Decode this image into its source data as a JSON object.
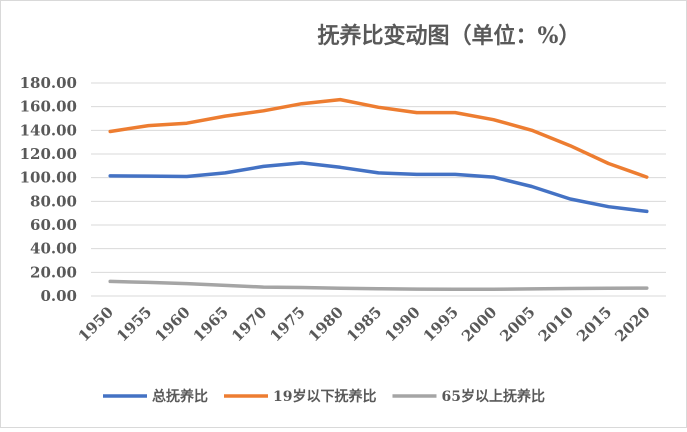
{
  "chart_data": {
    "type": "line",
    "title": "抚养比变动图（单位：%）",
    "xlabel": "",
    "ylabel": "",
    "x": [
      "1950",
      "1955",
      "1960",
      "1965",
      "1970",
      "1975",
      "1980",
      "1985",
      "1990",
      "1995",
      "2000",
      "2005",
      "2010",
      "2015",
      "2020"
    ],
    "y_ticks": [
      "0.00",
      "20.00",
      "40.00",
      "60.00",
      "80.00",
      "100.00",
      "120.00",
      "140.00",
      "160.00",
      "180.00"
    ],
    "ylim": [
      0,
      180
    ],
    "grid": "horizontal",
    "legend_position": "bottom",
    "series": [
      {
        "name": "总抚养比",
        "color": "#4472c4",
        "values": [
          101.5,
          101.3,
          101.0,
          104.0,
          109.5,
          112.5,
          108.8,
          104.0,
          102.8,
          102.8,
          100.5,
          92.5,
          82.0,
          75.5,
          71.5
        ]
      },
      {
        "name": "19岁以下抚养比",
        "color": "#ed7d31",
        "values": [
          139.0,
          144.0,
          146.0,
          152.0,
          156.5,
          162.5,
          166.0,
          159.5,
          155.0,
          155.0,
          149.0,
          140.0,
          127.0,
          112.0,
          100.5
        ]
      },
      {
        "name": "65岁以上抚养比",
        "color": "#a5a5a5",
        "values": [
          12.3,
          11.5,
          10.5,
          9.0,
          7.5,
          7.2,
          6.6,
          6.2,
          5.8,
          5.7,
          5.7,
          6.0,
          6.3,
          6.5,
          6.7
        ]
      }
    ]
  }
}
